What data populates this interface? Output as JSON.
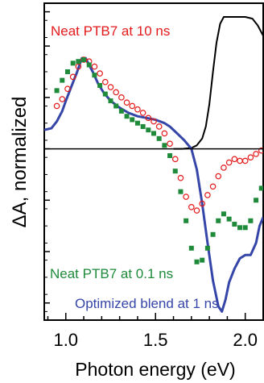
{
  "chart_data": {
    "type": "scatter",
    "xlabel": "Photon energy (eV)",
    "ylabel": "ΔA, normalized",
    "xlim": [
      0.88,
      2.1
    ],
    "ylim": [
      -1.0,
      0.85
    ],
    "x_ticks": [
      1.0,
      1.5,
      2.0
    ],
    "x_tick_labels": [
      "1.0",
      "1.5",
      "2.0"
    ],
    "y_tick_values": [
      -0.9,
      -0.6,
      -0.3,
      0.0,
      0.3,
      0.6,
      0.8
    ],
    "grid": false,
    "zero_line": true,
    "annotations": [
      {
        "text": "Neat PTB7 at 10 ns",
        "color": "#e31a1c",
        "series": "neat_10ns"
      },
      {
        "text": "Neat PTB7 at 0.1 ns",
        "color": "#1e8a3a",
        "series": "neat_01ns"
      },
      {
        "text": "Optimized blend at 1 ns",
        "color": "#3545a8",
        "series": "blend_1ns"
      }
    ],
    "series": [
      {
        "key": "ref",
        "style": "line",
        "color": "#000000",
        "x": [
          1.6,
          1.65,
          1.7,
          1.73,
          1.76,
          1.78,
          1.8,
          1.82,
          1.84,
          1.86,
          1.88,
          1.91,
          1.95,
          2.0,
          2.04,
          2.07,
          2.1
        ],
        "y": [
          0.0,
          0.0,
          0.005,
          0.02,
          0.06,
          0.13,
          0.26,
          0.45,
          0.62,
          0.73,
          0.77,
          0.77,
          0.77,
          0.77,
          0.76,
          0.72,
          0.66
        ]
      },
      {
        "key": "blend_1ns",
        "style": "line",
        "color": "#3545a8",
        "x": [
          0.88,
          0.92,
          0.95,
          0.98,
          1.0,
          1.03,
          1.06,
          1.09,
          1.11,
          1.13,
          1.15,
          1.18,
          1.21,
          1.25,
          1.3,
          1.35,
          1.4,
          1.45,
          1.5,
          1.55,
          1.58,
          1.62,
          1.66,
          1.7,
          1.73,
          1.76,
          1.79,
          1.82,
          1.85,
          1.87,
          1.89,
          1.91,
          1.94,
          1.97,
          2.0,
          2.03,
          2.06,
          2.08,
          2.1
        ],
        "y": [
          0.11,
          0.12,
          0.16,
          0.22,
          0.28,
          0.36,
          0.44,
          0.53,
          0.53,
          0.49,
          0.45,
          0.38,
          0.33,
          0.28,
          0.24,
          0.21,
          0.19,
          0.18,
          0.17,
          0.15,
          0.13,
          0.09,
          0.05,
          0.0,
          -0.12,
          -0.32,
          -0.55,
          -0.77,
          -0.92,
          -0.95,
          -0.88,
          -0.78,
          -0.7,
          -0.64,
          -0.62,
          -0.62,
          -0.55,
          -0.45,
          -0.4
        ]
      },
      {
        "key": "neat_10ns",
        "style": "open-circles",
        "color": "#e31a1c",
        "x": [
          0.95,
          0.98,
          1.01,
          1.04,
          1.07,
          1.1,
          1.13,
          1.16,
          1.19,
          1.22,
          1.25,
          1.28,
          1.31,
          1.34,
          1.37,
          1.4,
          1.43,
          1.46,
          1.49,
          1.52,
          1.55,
          1.58,
          1.61,
          1.64,
          1.67,
          1.7,
          1.73,
          1.76,
          1.79,
          1.82,
          1.85,
          1.88,
          1.91,
          1.94,
          1.97,
          2.0,
          2.03,
          2.06,
          2.09
        ],
        "y": [
          0.25,
          0.29,
          0.35,
          0.42,
          0.48,
          0.52,
          0.51,
          0.48,
          0.44,
          0.39,
          0.36,
          0.33,
          0.3,
          0.27,
          0.25,
          0.23,
          0.21,
          0.18,
          0.16,
          0.13,
          0.09,
          0.03,
          -0.06,
          -0.17,
          -0.28,
          -0.34,
          -0.36,
          -0.32,
          -0.27,
          -0.22,
          -0.16,
          -0.11,
          -0.08,
          -0.06,
          -0.07,
          -0.07,
          -0.05,
          -0.03,
          -0.01
        ]
      },
      {
        "key": "neat_01ns",
        "style": "filled-squares",
        "color": "#1e8a3a",
        "x": [
          0.95,
          0.98,
          1.01,
          1.04,
          1.07,
          1.1,
          1.13,
          1.16,
          1.19,
          1.22,
          1.25,
          1.28,
          1.31,
          1.34,
          1.37,
          1.4,
          1.43,
          1.46,
          1.49,
          1.52,
          1.55,
          1.58,
          1.61,
          1.64,
          1.67,
          1.7,
          1.73,
          1.76,
          1.79,
          1.82,
          1.85,
          1.88,
          1.91,
          1.94,
          1.97,
          2.0,
          2.03,
          2.06,
          2.09
        ],
        "y": [
          0.34,
          0.4,
          0.45,
          0.5,
          0.51,
          0.52,
          0.49,
          0.43,
          0.37,
          0.32,
          0.28,
          0.25,
          0.22,
          0.19,
          0.17,
          0.15,
          0.13,
          0.11,
          0.09,
          0.06,
          0.02,
          -0.04,
          -0.13,
          -0.25,
          -0.42,
          -0.58,
          -0.66,
          -0.65,
          -0.58,
          -0.5,
          -0.42,
          -0.38,
          -0.41,
          -0.44,
          -0.46,
          -0.46,
          -0.42,
          -0.3,
          -0.23
        ]
      }
    ]
  }
}
